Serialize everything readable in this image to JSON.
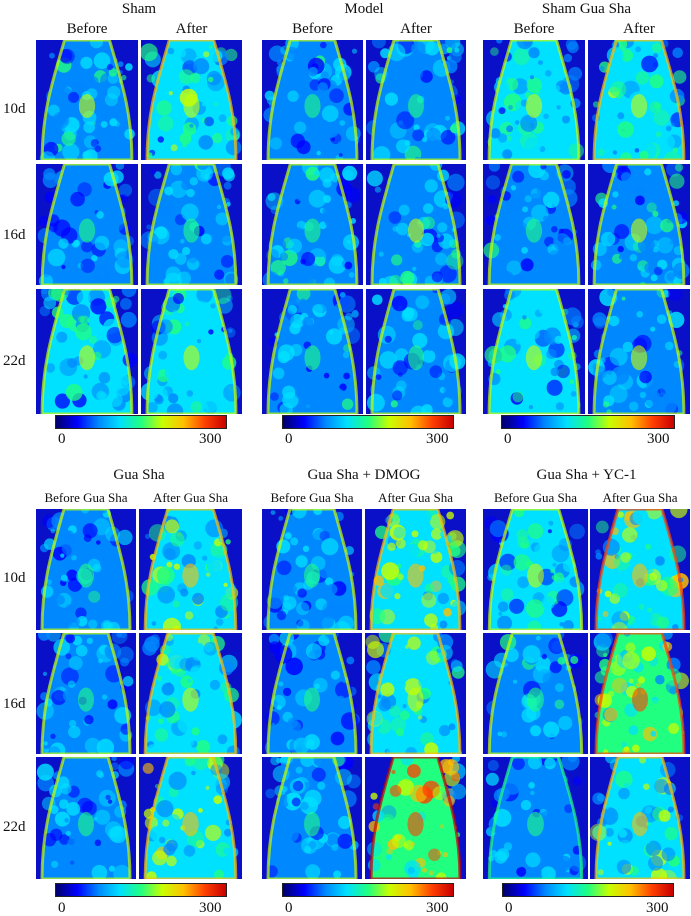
{
  "colormap": [
    "#00006a",
    "#0000ff",
    "#0088ff",
    "#00e0ff",
    "#20ff80",
    "#c8ff00",
    "#ffc000",
    "#ff4000",
    "#c80000"
  ],
  "rows": [
    "10d",
    "16d",
    "22d"
  ],
  "top_panels": [
    {
      "title": "Sham",
      "columns": [
        "Before",
        "After"
      ],
      "scale": {
        "min": "0",
        "max": "300"
      },
      "intensity": [
        [
          0.38,
          0.45
        ],
        [
          0.32,
          0.36
        ],
        [
          0.4,
          0.42
        ]
      ]
    },
    {
      "title": "Model",
      "columns": [
        "Before",
        "After"
      ],
      "scale": {
        "min": "0",
        "max": "300"
      },
      "intensity": [
        [
          0.34,
          0.36
        ],
        [
          0.36,
          0.38
        ],
        [
          0.36,
          0.34
        ]
      ]
    },
    {
      "title": "Sham Gua Sha",
      "columns": [
        "Before",
        "After"
      ],
      "scale": {
        "min": "0",
        "max": "300"
      },
      "intensity": [
        [
          0.4,
          0.44
        ],
        [
          0.34,
          0.38
        ],
        [
          0.4,
          0.38
        ]
      ]
    }
  ],
  "bottom_panels": [
    {
      "title": "Gua Sha",
      "columns": [
        "Before Gua Sha",
        "After Gua Sha"
      ],
      "scale": {
        "min": "0",
        "max": "300"
      },
      "intensity": [
        [
          0.34,
          0.5
        ],
        [
          0.32,
          0.48
        ],
        [
          0.34,
          0.54
        ]
      ]
    },
    {
      "title": "Gua Sha + DMOG",
      "columns": [
        "Before Gua Sha",
        "After Gua Sha"
      ],
      "scale": {
        "min": "0",
        "max": "300"
      },
      "intensity": [
        [
          0.32,
          0.56
        ],
        [
          0.32,
          0.46
        ],
        [
          0.34,
          0.7
        ]
      ]
    },
    {
      "title": "Gua Sha + YC-1",
      "columns": [
        "Before Gua Sha",
        "After Gua Sha"
      ],
      "scale": {
        "min": "0",
        "max": "300"
      },
      "intensity": [
        [
          0.4,
          0.58
        ],
        [
          0.36,
          0.62
        ],
        [
          0.3,
          0.52
        ]
      ]
    }
  ]
}
